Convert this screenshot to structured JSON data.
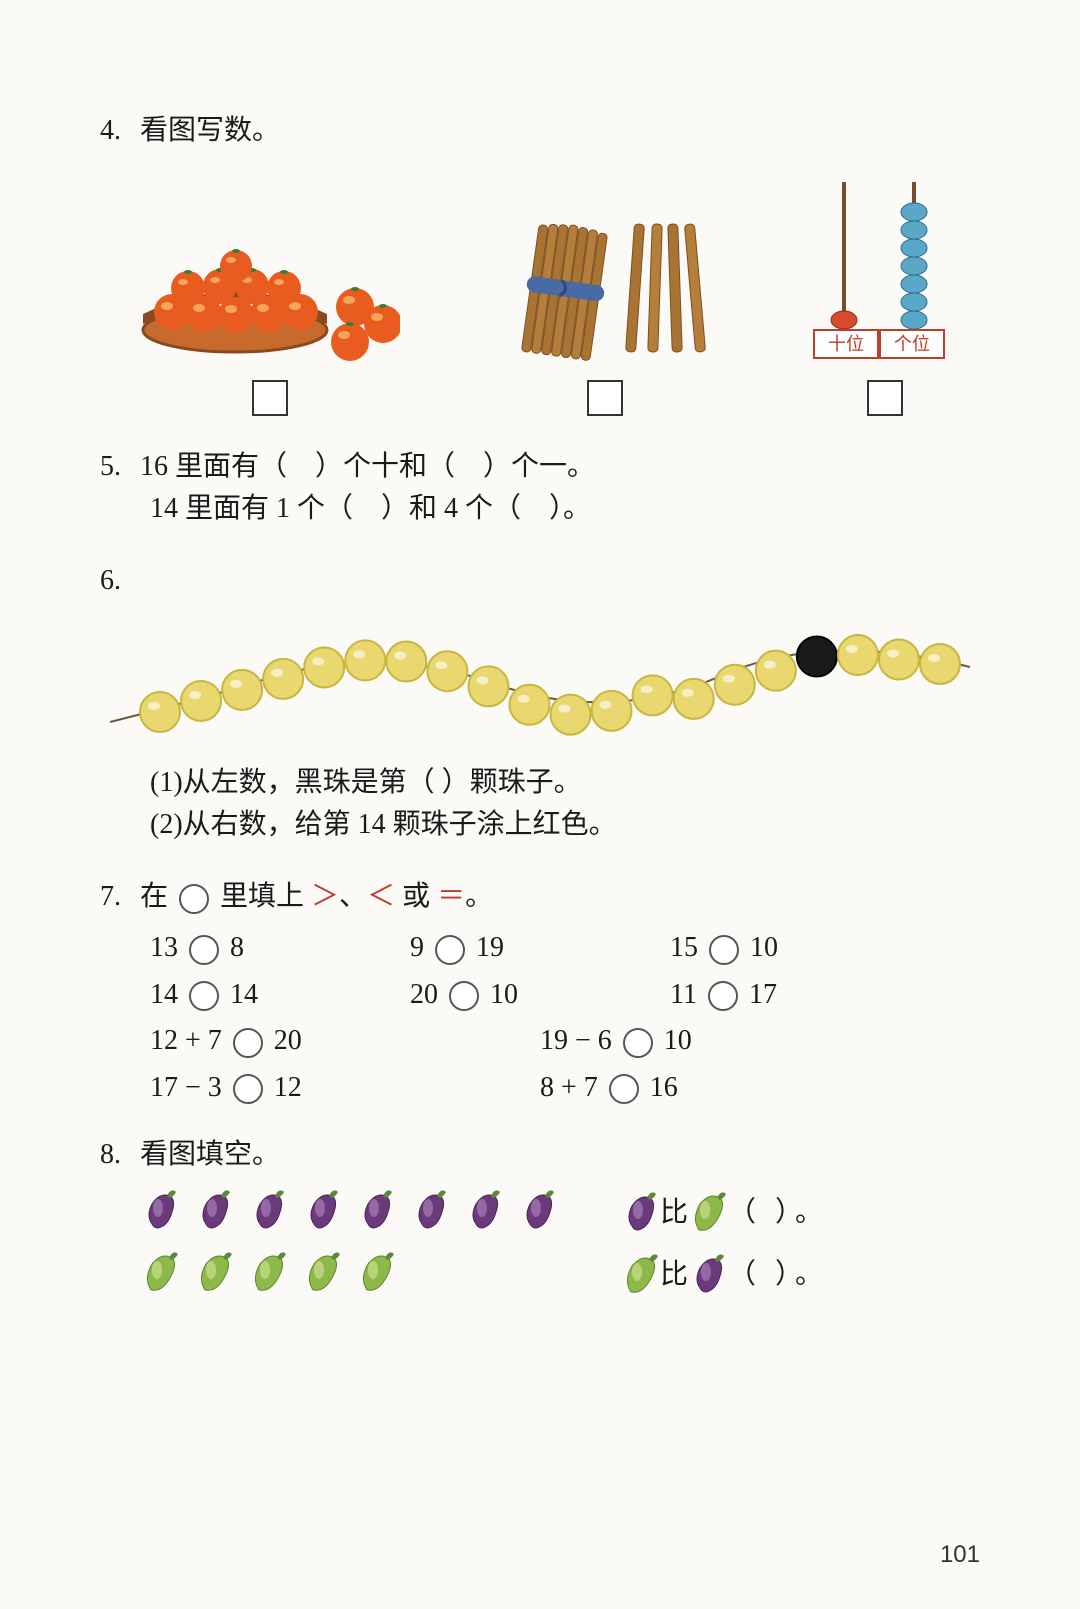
{
  "page": {
    "number": "101",
    "bg": "#fbfaf6"
  },
  "q4": {
    "num": "4.",
    "title": "看图写数。",
    "oranges": {
      "basket_count": 10,
      "outside_count": 3,
      "basket_fill": "#c76a2e",
      "basket_rim": "#8a4a1e",
      "orange_fill": "#e85c1f",
      "orange_hl": "#f7a35a",
      "leaf": "#3a7d2e"
    },
    "sticks": {
      "bundle_count": 10,
      "loose_count": 4,
      "stick_fill": "#a97433",
      "stick_dark": "#7a5022",
      "band": "#4a6aa5"
    },
    "abacus": {
      "tens_beads": 1,
      "ones_beads": 7,
      "frame": "#b5412e",
      "rod": "#7a4a2a",
      "tens_bead_color": "#d94a2c",
      "ones_bead_color": "#5aa8c8",
      "label_tens": "十位",
      "label_ones": "个位",
      "label_color": "#c0392b"
    },
    "box_color": "#333"
  },
  "q5": {
    "num": "5.",
    "line1_a": "16 里面有（",
    "line1_b": "）个十和（",
    "line1_c": "）个一。",
    "line2_a": "14 里面有 1 个（",
    "line2_b": "）和 4 个（",
    "line2_c": "）。"
  },
  "q6": {
    "num": "6.",
    "beads": {
      "total": 20,
      "black_index_from_left": 17,
      "yellow_fill": "#e8d86f",
      "yellow_dark": "#c7b741",
      "black_fill": "#1a1a1a",
      "string": "#6a5a3a"
    },
    "sub1": "(1)从左数，黑珠是第（    ）颗珠子。",
    "sub2": "(2)从右数，给第 14 颗珠子涂上红色。"
  },
  "q7": {
    "num": "7.",
    "title_a": "在 ",
    "title_b": " 里填上 ",
    "gt": "＞",
    "sep": "、",
    "lt": "＜",
    "or": " 或 ",
    "eq": "＝",
    "title_c": "。",
    "row1": [
      {
        "l": "13",
        "r": "8"
      },
      {
        "l": "9",
        "r": "19"
      },
      {
        "l": "15",
        "r": "10"
      }
    ],
    "row2": [
      {
        "l": "14",
        "r": "14"
      },
      {
        "l": "20",
        "r": "10"
      },
      {
        "l": "11",
        "r": "17"
      }
    ],
    "row3": [
      {
        "l": "12 + 7",
        "r": "20"
      },
      {
        "l": "19 − 6",
        "r": "10"
      }
    ],
    "row4": [
      {
        "l": "17 − 3",
        "r": "12"
      },
      {
        "l": "8 + 7",
        "r": "16"
      }
    ]
  },
  "q8": {
    "num": "8.",
    "title": "看图填空。",
    "eggplant": {
      "count": 8,
      "fill": "#6b3a7a",
      "hl": "#b08ac0",
      "stem": "#5a8a3a"
    },
    "pepper": {
      "count": 5,
      "fill": "#8fb84a",
      "hl": "#c8e090",
      "stem": "#5a8a3a"
    },
    "cmp1_mid": " 比 ",
    "cmp_paren": "（      ）。",
    "cmp2_mid": " 比 "
  }
}
